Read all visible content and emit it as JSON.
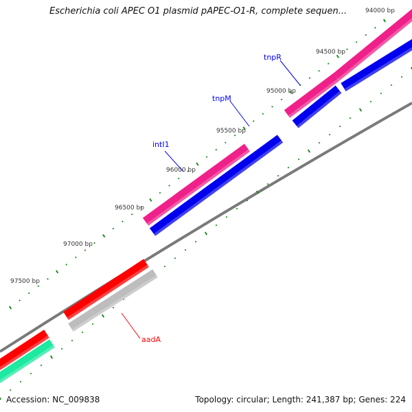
{
  "title": "Escherichia coli APEC O1 plasmid pAPEC-O1-R, complete sequen...",
  "footer": {
    "accession": "Accession: NC_009838",
    "summary": "Topology: circular; Length: 241,387 bp; Genes: 224"
  },
  "tick_labels": [
    "94000 bp",
    "94500 bp",
    "95000 bp",
    "95500 bp",
    "96000 bp",
    "96500 bp",
    "97000 bp",
    "97500 bp"
  ],
  "genes": [
    {
      "name": "tnpR",
      "color": "#0000ff"
    },
    {
      "name": "tnpM",
      "color": "#0000ff"
    },
    {
      "name": "intI1",
      "color": "#0000ff"
    },
    {
      "name": "aadA",
      "color": "#ff0000"
    }
  ],
  "colors": {
    "pink": "#f0208a",
    "blue": "#0000ee",
    "red": "#ff0000",
    "gray": "#bdbdbd",
    "green": "#1de9a0",
    "backbone": "#808080",
    "ticks": "#1a8a1a"
  }
}
